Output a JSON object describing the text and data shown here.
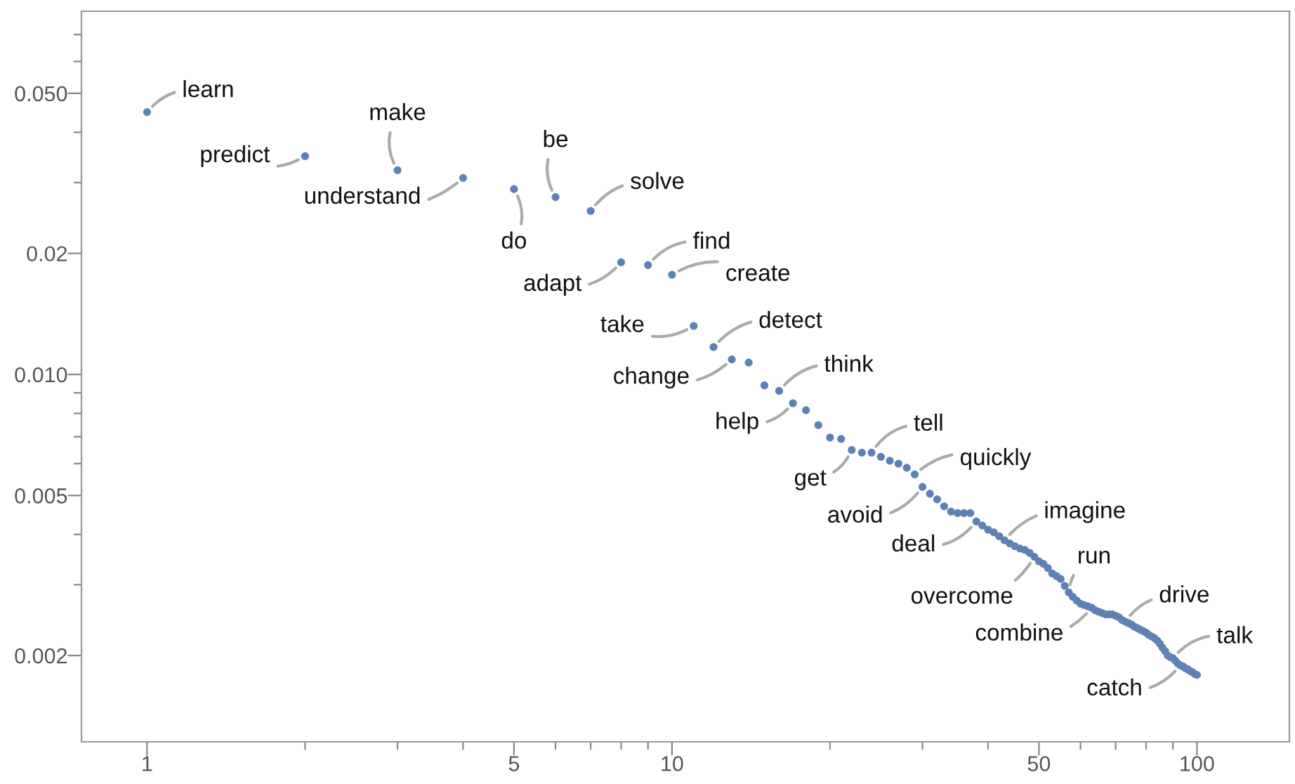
{
  "chart_data": {
    "type": "scatter",
    "log": "xy",
    "grid": false,
    "marker": "circle",
    "xlim": [
      0.75,
      150
    ],
    "ylim": [
      0.00122,
      0.08
    ],
    "xticks": [
      1,
      {
        "value": 2,
        "label": null
      },
      {
        "value": 3,
        "label": null
      },
      {
        "value": 4,
        "label": null
      },
      5,
      {
        "value": 6,
        "label": null
      },
      {
        "value": 7,
        "label": null
      },
      {
        "value": 8,
        "label": null
      },
      {
        "value": 9,
        "label": null
      },
      10,
      {
        "value": 20,
        "label": null
      },
      {
        "value": 30,
        "label": null
      },
      {
        "value": 40,
        "label": null
      },
      50,
      {
        "value": 60,
        "label": null
      },
      {
        "value": 70,
        "label": null
      },
      {
        "value": 80,
        "label": null
      },
      {
        "value": 90,
        "label": null
      },
      100
    ],
    "yticks": [
      0.002,
      {
        "value": 0.003,
        "label": null
      },
      {
        "value": 0.004,
        "label": null
      },
      0.005,
      {
        "value": 0.006,
        "label": null
      },
      {
        "value": 0.007,
        "label": null
      },
      {
        "value": 0.008,
        "label": null
      },
      {
        "value": 0.009,
        "label": null
      },
      {
        "value": 0.01,
        "label": "0.010"
      },
      0.02,
      {
        "value": 0.03,
        "label": null
      },
      {
        "value": 0.04,
        "label": null
      },
      {
        "value": 0.05,
        "label": "0.050"
      },
      {
        "value": 0.06,
        "label": null
      },
      {
        "value": 0.07,
        "label": null
      }
    ],
    "x": [
      1,
      2,
      3,
      4,
      5,
      6,
      7,
      8,
      9,
      10,
      11,
      12,
      13,
      14,
      15,
      16,
      17,
      18,
      19,
      20,
      21,
      22,
      23,
      24,
      25,
      26,
      27,
      28,
      29,
      30,
      31,
      32,
      33,
      34,
      35,
      36,
      37,
      38,
      39,
      40,
      41,
      42,
      43,
      44,
      45,
      46,
      47,
      48,
      49,
      50,
      51,
      52,
      53,
      54,
      55,
      56,
      57,
      58,
      59,
      60,
      61,
      62,
      63,
      64,
      65,
      66,
      67,
      68,
      69,
      70,
      71,
      72,
      73,
      74,
      75,
      76,
      77,
      78,
      79,
      80,
      81,
      82,
      83,
      84,
      85,
      86,
      87,
      88,
      89,
      90,
      91,
      92,
      93,
      94,
      95,
      96,
      97,
      98,
      99,
      100
    ],
    "series": [
      {
        "color": "#5e81b5",
        "values": [
          0.0449,
          0.0349,
          0.0322,
          0.0308,
          0.0289,
          0.0276,
          0.0255,
          0.019,
          0.0187,
          0.0177,
          0.0132,
          0.0117,
          0.0109,
          0.0107,
          0.00939,
          0.0091,
          0.00848,
          0.00815,
          0.00748,
          0.00697,
          0.00691,
          0.00649,
          0.00639,
          0.00639,
          0.00624,
          0.0061,
          0.006,
          0.00586,
          0.00564,
          0.00525,
          0.00505,
          0.00489,
          0.0047,
          0.00456,
          0.00452,
          0.00452,
          0.00452,
          0.00431,
          0.00421,
          0.00411,
          0.00405,
          0.00396,
          0.00387,
          0.0038,
          0.00374,
          0.00369,
          0.00366,
          0.0036,
          0.00352,
          0.00343,
          0.00338,
          0.0033,
          0.0032,
          0.00315,
          0.0031,
          0.00298,
          0.00287,
          0.0028,
          0.00274,
          0.00269,
          0.00267,
          0.00265,
          0.00263,
          0.00259,
          0.00257,
          0.00255,
          0.00253,
          0.00253,
          0.00253,
          0.00251,
          0.00249,
          0.00245,
          0.00243,
          0.00241,
          0.00239,
          0.00236,
          0.00234,
          0.00232,
          0.0023,
          0.00228,
          0.00225,
          0.00223,
          0.00221,
          0.00218,
          0.00214,
          0.00209,
          0.00205,
          0.002,
          0.00198,
          0.00197,
          0.00194,
          0.00191,
          0.00189,
          0.00188,
          0.00186,
          0.00185,
          0.00183,
          0.00182,
          0.0018,
          0.00179
        ]
      }
    ],
    "annotations": [
      {
        "text": "learn",
        "x": 1,
        "y": 0.0449
      },
      {
        "text": "predict",
        "x": 2,
        "y": 0.0349
      },
      {
        "text": "make",
        "x": 3,
        "y": 0.0322
      },
      {
        "text": "understand",
        "x": 4,
        "y": 0.0308
      },
      {
        "text": "do",
        "x": 5,
        "y": 0.0289
      },
      {
        "text": "be",
        "x": 6,
        "y": 0.0276
      },
      {
        "text": "solve",
        "x": 7,
        "y": 0.0255
      },
      {
        "text": "adapt",
        "x": 8,
        "y": 0.019
      },
      {
        "text": "find",
        "x": 9,
        "y": 0.0187
      },
      {
        "text": "create",
        "x": 10,
        "y": 0.0177
      },
      {
        "text": "take",
        "x": 11,
        "y": 0.0132
      },
      {
        "text": "detect",
        "x": 12,
        "y": 0.0117
      },
      {
        "text": "change",
        "x": 13,
        "y": 0.0109
      },
      {
        "text": "think",
        "x": 16,
        "y": 0.0091
      },
      {
        "text": "help",
        "x": 17,
        "y": 0.00848
      },
      {
        "text": "tell",
        "x": 24,
        "y": 0.00639
      },
      {
        "text": "get",
        "x": 22,
        "y": 0.00649
      },
      {
        "text": "quickly",
        "x": 29,
        "y": 0.00564
      },
      {
        "text": "avoid",
        "x": 30,
        "y": 0.00525
      },
      {
        "text": "deal",
        "x": 38,
        "y": 0.00431
      },
      {
        "text": "imagine",
        "x": 43,
        "y": 0.00387
      },
      {
        "text": "overcome",
        "x": 49,
        "y": 0.00352
      },
      {
        "text": "run",
        "x": 57,
        "y": 0.00287
      },
      {
        "text": "combine",
        "x": 63,
        "y": 0.00263
      },
      {
        "text": "drive",
        "x": 73,
        "y": 0.00243
      },
      {
        "text": "talk",
        "x": 90,
        "y": 0.00197
      },
      {
        "text": "catch",
        "x": 93,
        "y": 0.00189
      }
    ]
  }
}
